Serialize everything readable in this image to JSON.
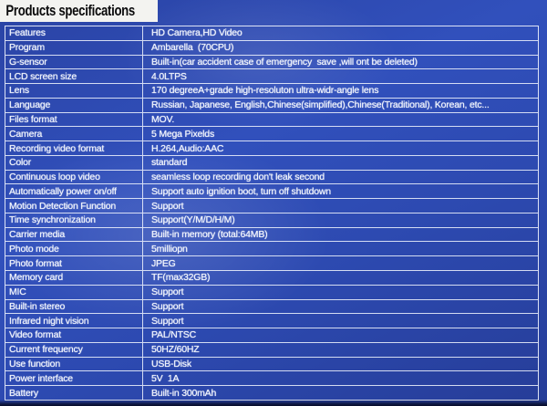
{
  "page": {
    "title": "Products specifications"
  },
  "colors": {
    "card_blue": "#2d4ab1",
    "table_border": "#ecf0fc",
    "title_background": "#f3f3f0",
    "title_text": "#0b0b0c",
    "cell_text": "#eef2fc",
    "bottom_edge": "#070c28"
  },
  "table": {
    "rows": [
      {
        "label": "Features",
        "value": "HD Camera,HD Video"
      },
      {
        "label": "Program",
        "value": "Ambarella  (70CPU)"
      },
      {
        "label": "G-sensor",
        "value": "Built-in(car accident case of emergency  save ,will ont be deleted)"
      },
      {
        "label": "LCD screen size",
        "value": "4.0LTPS"
      },
      {
        "label": "Lens",
        "value": "170 degreeA+grade high-resoluton ultra-widr-angle lens"
      },
      {
        "label": "Language",
        "value": "Russian, Japanese, English,Chinese(simplified),Chinese(Traditional), Korean, etc..."
      },
      {
        "label": "Files format",
        "value": "MOV."
      },
      {
        "label": "Camera",
        "value": "5 Mega Pixelds"
      },
      {
        "label": "Recording video format",
        "value": "H.264,Audio:AAC"
      },
      {
        "label": "Color",
        "value": "standard"
      },
      {
        "label": "Continuous loop video",
        "value": "seamless loop recording don't leak second"
      },
      {
        "label": "Automatically power on/off",
        "value": "Support auto ignition boot, turn off shutdown"
      },
      {
        "label": "Motion Detection Function",
        "value": "Support"
      },
      {
        "label": "Time synchronization",
        "value": "Support(Y/M/D/H/M)"
      },
      {
        "label": "Carrier media",
        "value": "Built-in memory (total:64MB)"
      },
      {
        "label": "Photo mode",
        "value": "5milliopn"
      },
      {
        "label": "Photo format",
        "value": "JPEG"
      },
      {
        "label": "Memory card",
        "value": "TF(max32GB)"
      },
      {
        "label": "MIC",
        "value": "Support"
      },
      {
        "label": "Built-in stereo",
        "value": "Support"
      },
      {
        "label": "Infrared night vision",
        "value": "Support"
      },
      {
        "label": "Video format",
        "value": "PAL/NTSC"
      },
      {
        "label": "Current frequency",
        "value": "50HZ/60HZ"
      },
      {
        "label": "Use function",
        "value": "USB-Disk"
      },
      {
        "label": "Power interface",
        "value": "5V  1A"
      },
      {
        "label": "Battery",
        "value": "Built-in 300mAh"
      }
    ]
  }
}
